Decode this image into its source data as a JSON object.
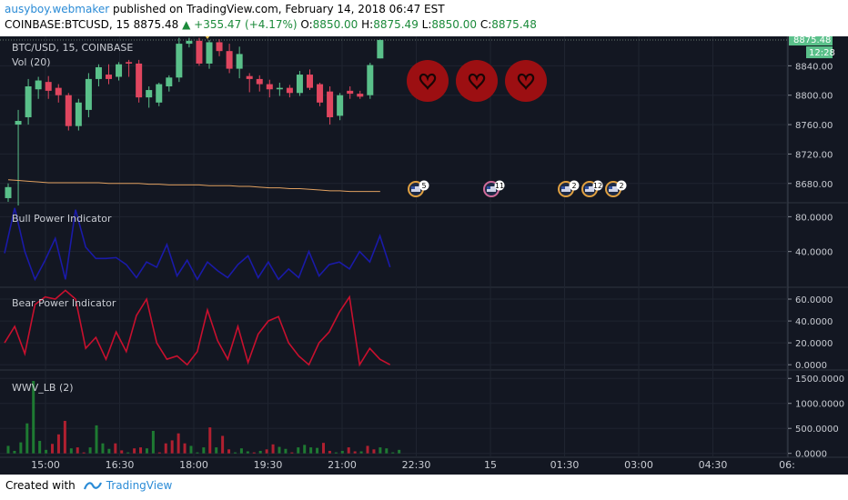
{
  "header": {
    "user": "ausyboy.webmaker",
    "published": "published on TradingView.com, February 14, 2018 06:47 EST",
    "symbol": "COINBASE:BTCUSD, 15",
    "last": "8875.48",
    "change": "+355.47 (+4.17%)",
    "o_label": "O:",
    "o": "8850.00",
    "h_label": "H:",
    "h": "8875.49",
    "l_label": "L:",
    "l": "8850.00",
    "c_label": "C:",
    "c": "8875.48"
  },
  "footer": {
    "created_with": "Created with",
    "brand": "TradingView"
  },
  "colors": {
    "background": "#131722",
    "bull": "#5ac08a",
    "bear": "#e0465f",
    "bull_power_line": "#1a1aa8",
    "bear_power_line": "#c8102e",
    "vol_ma": "#e0a060",
    "heart": "#9c0f12",
    "price_tag": "#5ac08a",
    "volume_green": "#1e7a32",
    "volume_red": "#b02030"
  },
  "chart_data": [
    {
      "type": "candlestick",
      "title": "BTC/USD, 15, COINBASE",
      "subtitle": "Vol (20)",
      "ylim": [
        8655,
        8880
      ],
      "yticks": [
        8680,
        8720,
        8760,
        8800,
        8840
      ],
      "ytick_labels": [
        "8680.00",
        "8720.00",
        "8760.00",
        "8800.00",
        "8840.00"
      ],
      "last_price_label": "8875.48",
      "countdown_label": "12:28",
      "ohlc": [
        {
          "o": 8660,
          "h": 8680,
          "l": 8655,
          "c": 8675
        },
        {
          "o": 8760,
          "h": 8780,
          "l": 8650,
          "c": 8765
        },
        {
          "o": 8770,
          "h": 8822,
          "l": 8760,
          "c": 8812
        },
        {
          "o": 8808,
          "h": 8825,
          "l": 8795,
          "c": 8820
        },
        {
          "o": 8818,
          "h": 8826,
          "l": 8795,
          "c": 8806
        },
        {
          "o": 8810,
          "h": 8815,
          "l": 8790,
          "c": 8800
        },
        {
          "o": 8800,
          "h": 8803,
          "l": 8752,
          "c": 8758
        },
        {
          "o": 8758,
          "h": 8795,
          "l": 8752,
          "c": 8790
        },
        {
          "o": 8780,
          "h": 8830,
          "l": 8770,
          "c": 8822
        },
        {
          "o": 8822,
          "h": 8842,
          "l": 8812,
          "c": 8838
        },
        {
          "o": 8828,
          "h": 8842,
          "l": 8815,
          "c": 8822
        },
        {
          "o": 8825,
          "h": 8845,
          "l": 8820,
          "c": 8842
        },
        {
          "o": 8845,
          "h": 8848,
          "l": 8825,
          "c": 8843
        },
        {
          "o": 8843,
          "h": 8848,
          "l": 8790,
          "c": 8797
        },
        {
          "o": 8797,
          "h": 8812,
          "l": 8783,
          "c": 8807
        },
        {
          "o": 8790,
          "h": 8817,
          "l": 8785,
          "c": 8815
        },
        {
          "o": 8812,
          "h": 8827,
          "l": 8805,
          "c": 8824
        },
        {
          "o": 8824,
          "h": 8878,
          "l": 8818,
          "c": 8870
        },
        {
          "o": 8870,
          "h": 8878,
          "l": 8865,
          "c": 8874
        },
        {
          "o": 8874,
          "h": 8878,
          "l": 8840,
          "c": 8843
        },
        {
          "o": 8843,
          "h": 8875,
          "l": 8836,
          "c": 8872
        },
        {
          "o": 8872,
          "h": 8876,
          "l": 8853,
          "c": 8860
        },
        {
          "o": 8860,
          "h": 8870,
          "l": 8830,
          "c": 8836
        },
        {
          "o": 8836,
          "h": 8866,
          "l": 8823,
          "c": 8856
        },
        {
          "o": 8826,
          "h": 8830,
          "l": 8804,
          "c": 8822
        },
        {
          "o": 8822,
          "h": 8827,
          "l": 8805,
          "c": 8815
        },
        {
          "o": 8815,
          "h": 8821,
          "l": 8797,
          "c": 8808
        },
        {
          "o": 8808,
          "h": 8817,
          "l": 8799,
          "c": 8810
        },
        {
          "o": 8810,
          "h": 8814,
          "l": 8797,
          "c": 8803
        },
        {
          "o": 8803,
          "h": 8833,
          "l": 8799,
          "c": 8828
        },
        {
          "o": 8828,
          "h": 8835,
          "l": 8807,
          "c": 8810
        },
        {
          "o": 8815,
          "h": 8817,
          "l": 8785,
          "c": 8790
        },
        {
          "o": 8805,
          "h": 8812,
          "l": 8760,
          "c": 8770
        },
        {
          "o": 8772,
          "h": 8803,
          "l": 8766,
          "c": 8800
        },
        {
          "o": 8806,
          "h": 8812,
          "l": 8795,
          "c": 8802
        },
        {
          "o": 8802,
          "h": 8806,
          "l": 8795,
          "c": 8798
        },
        {
          "o": 8800,
          "h": 8844,
          "l": 8795,
          "c": 8841
        },
        {
          "o": 8850,
          "h": 8876,
          "l": 8850,
          "c": 8875
        }
      ],
      "vol_ma": [
        8685,
        8684,
        8683,
        8682,
        8681,
        8681,
        8681,
        8681,
        8681,
        8681,
        8680,
        8680,
        8680,
        8680,
        8679,
        8679,
        8678,
        8678,
        8678,
        8678,
        8677,
        8677,
        8677,
        8676,
        8676,
        8675,
        8674,
        8674,
        8673,
        8673,
        8672,
        8671,
        8670,
        8670,
        8669,
        8669,
        8669,
        8669
      ],
      "annotations": [
        "heart",
        "heart",
        "heart"
      ],
      "event_badges": [
        {
          "label": "5",
          "at_time": "22:30"
        },
        {
          "label": "11",
          "at_time": "15"
        },
        {
          "label": "2",
          "at_time": "01:30"
        },
        {
          "label": "12",
          "at_time": "02:00"
        },
        {
          "label": "2",
          "at_time": "02:30"
        }
      ]
    },
    {
      "type": "line",
      "title": "Bull Power Indicator",
      "ylim": [
        0,
        95
      ],
      "yticks": [
        40,
        80
      ],
      "ytick_labels": [
        "40.0000",
        "80.0000"
      ],
      "series": [
        {
          "values": [
            38,
            90,
            40,
            8,
            30,
            55,
            8,
            88,
            45,
            32,
            32,
            33,
            25,
            10,
            28,
            22,
            48,
            12,
            30,
            8,
            28,
            18,
            10,
            25,
            35,
            10,
            28,
            8,
            20,
            10,
            40,
            12,
            25,
            28,
            20,
            40,
            28,
            58,
            22
          ]
        }
      ]
    },
    {
      "type": "line",
      "title": "Bear Power Indicator",
      "ylim": [
        -4,
        70
      ],
      "yticks": [
        0,
        20,
        40,
        60
      ],
      "ytick_labels": [
        "0.0000",
        "20.0000",
        "40.0000",
        "60.0000"
      ],
      "series": [
        {
          "values": [
            20,
            35,
            10,
            55,
            62,
            60,
            68,
            60,
            15,
            25,
            5,
            30,
            12,
            45,
            60,
            20,
            5,
            8,
            0,
            12,
            50,
            22,
            5,
            35,
            2,
            28,
            40,
            44,
            20,
            8,
            0,
            20,
            30,
            48,
            62,
            0,
            15,
            5,
            0
          ]
        }
      ]
    },
    {
      "type": "bar",
      "title": "WWV_LB (2)",
      "ylim": [
        -60,
        1650
      ],
      "yticks": [
        0,
        500,
        1000,
        1500
      ],
      "ytick_labels": [
        "0.0000",
        "500.0000",
        "1000.0000",
        "1500.0000"
      ],
      "values": [
        150,
        50,
        220,
        600,
        1450,
        250,
        70,
        190,
        380,
        650,
        100,
        120,
        20,
        120,
        560,
        200,
        90,
        200,
        60,
        20,
        100,
        120,
        100,
        450,
        20,
        200,
        260,
        400,
        200,
        150,
        20,
        120,
        520,
        120,
        350,
        80,
        20,
        100,
        40,
        20,
        50,
        80,
        180,
        130,
        90,
        20,
        120,
        170,
        120,
        110,
        210,
        50,
        20,
        50,
        120,
        40,
        40,
        150,
        80,
        120,
        100,
        20,
        70
      ],
      "signs": [
        1,
        1,
        1,
        1,
        1,
        1,
        1,
        -1,
        -1,
        -1,
        1,
        -1,
        -1,
        1,
        1,
        1,
        1,
        -1,
        -1,
        1,
        -1,
        -1,
        1,
        1,
        -1,
        -1,
        -1,
        -1,
        -1,
        1,
        1,
        1,
        -1,
        1,
        -1,
        -1,
        1,
        1,
        1,
        -1,
        1,
        -1,
        -1,
        1,
        1,
        -1,
        1,
        1,
        1,
        1,
        -1,
        -1,
        1,
        1,
        -1,
        -1,
        1,
        -1,
        -1,
        1,
        1,
        1,
        1
      ]
    }
  ],
  "time_axis": [
    "15:00",
    "16:30",
    "18:00",
    "19:30",
    "21:00",
    "22:30",
    "15",
    "01:30",
    "03:00",
    "04:30",
    "06:"
  ]
}
